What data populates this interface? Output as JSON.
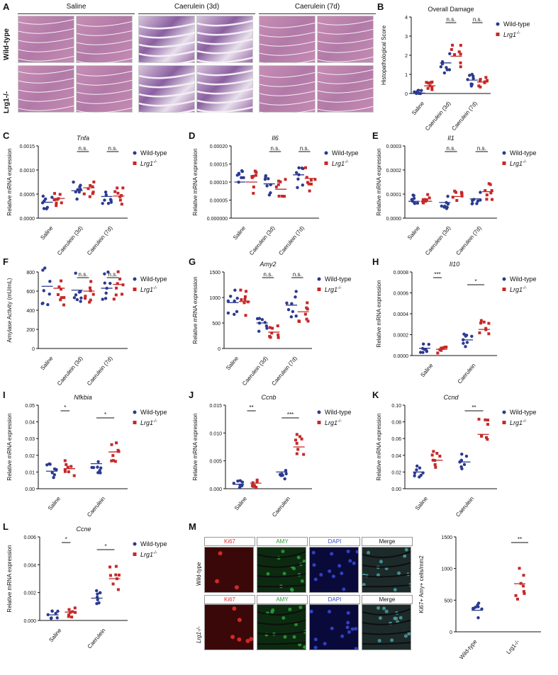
{
  "panel_letters": [
    "A",
    "B",
    "C",
    "D",
    "E",
    "F",
    "G",
    "H",
    "I",
    "J",
    "K",
    "L",
    "M"
  ],
  "panelA": {
    "col_headers": [
      "Saline",
      "Caerulein (3d)",
      "Caerulein (7d)"
    ],
    "row_headers": [
      "Wild-type",
      "Lrg1-/-"
    ]
  },
  "legend": {
    "wt": "Wild-type",
    "ko": "Lrg1",
    "ko_sup": "-/-"
  },
  "colors": {
    "wt": "#2b3a8f",
    "ko": "#c62828",
    "he_pink": "#c78fb4",
    "he_purple": "#7b3f8c"
  },
  "panelM": {
    "channels": [
      "Ki67",
      "AMY",
      "DAPI",
      "Merge"
    ],
    "rows": [
      "Wild-type",
      "Lrg1-/-"
    ]
  },
  "chart_data": [
    {
      "id": "B",
      "type": "scatter",
      "title": "Overall Damage",
      "ylabel": "Histopathological Score",
      "categories": [
        "Saline",
        "Caerulein (3d)",
        "Caerulein (7d)"
      ],
      "ylim": [
        0,
        4
      ],
      "yticks": [
        0,
        1,
        2,
        3,
        4
      ],
      "series": [
        {
          "name": "Wild-type",
          "means": [
            0.02,
            1.6,
            0.7
          ]
        },
        {
          "name": "Lrg1-/-",
          "means": [
            0.4,
            1.95,
            0.6
          ]
        }
      ],
      "annotations": [
        "n.s.",
        "n.s."
      ]
    },
    {
      "id": "C",
      "type": "scatter",
      "title": "Tnfa",
      "ylabel": "Relative mRNA expression",
      "categories": [
        "Saline",
        "Caerulein (3d)",
        "Caerulein (7d)"
      ],
      "ylim": [
        0,
        0.0015
      ],
      "yticks": [
        "0.0000",
        "0.0005",
        "0.0010",
        "0.0015"
      ],
      "series": [
        {
          "name": "Wild-type",
          "means": [
            0.00033,
            0.00057,
            0.00045
          ]
        },
        {
          "name": "Lrg1-/-",
          "means": [
            0.00041,
            0.00063,
            0.00046
          ]
        }
      ],
      "annotations": [
        "n.s.",
        "n.s."
      ]
    },
    {
      "id": "D",
      "type": "scatter",
      "title": "Il6",
      "ylabel": "Relative mRNA expression",
      "categories": [
        "Saline",
        "Caerulein (3d)",
        "Caerulein (7d)"
      ],
      "ylim": [
        0,
        0.0002
      ],
      "yticks": [
        "0.000000",
        "0.00005",
        "0.00010",
        "0.00015",
        "0.00020"
      ],
      "series": [
        {
          "name": "Wild-type",
          "means": [
            0.0001,
            9.5e-05,
            0.00012
          ]
        },
        {
          "name": "Lrg1-/-",
          "means": [
            0.0001,
            8e-05,
            0.00011
          ]
        }
      ],
      "annotations": [
        "n.s.",
        "n.s."
      ]
    },
    {
      "id": "E",
      "type": "scatter",
      "title": "Il1",
      "ylabel": "Relative mRNA expression",
      "categories": [
        "Saline",
        "Caerulein (3d)",
        "Caerulein (7d)"
      ],
      "ylim": [
        0,
        0.0003
      ],
      "yticks": [
        "0.0000",
        "0.0001",
        "0.0002",
        "0.0003"
      ],
      "series": [
        {
          "name": "Wild-type",
          "means": [
            7e-05,
            6.5e-05,
            8e-05
          ]
        },
        {
          "name": "Lrg1-/-",
          "means": [
            7e-05,
            9e-05,
            0.00011
          ]
        }
      ],
      "annotations": [
        "n.s.",
        "n.s."
      ]
    },
    {
      "id": "F",
      "type": "scatter",
      "ylabel": "Amylase Activity (mU/mL)",
      "categories": [
        "Saline",
        "Caerulein (3d)",
        "Caerulein (7d)"
      ],
      "ylim": [
        0,
        800
      ],
      "yticks": [
        0,
        200,
        400,
        600,
        800
      ],
      "series": [
        {
          "name": "Wild-type",
          "means": [
            650,
            610,
            630
          ]
        },
        {
          "name": "Lrg1-/-",
          "means": [
            630,
            600,
            670
          ]
        }
      ],
      "annotations": [
        "n.s.",
        "n.s."
      ]
    },
    {
      "id": "G",
      "type": "scatter",
      "title": "Amy2",
      "ylabel": "Relative mRNA expression",
      "categories": [
        "Saline",
        "Caerulein (3d)",
        "Caerulein (7d)"
      ],
      "ylim": [
        0,
        1500
      ],
      "yticks": [
        0,
        500,
        1000,
        1500
      ],
      "series": [
        {
          "name": "Wild-type",
          "means": [
            900,
            500,
            850
          ]
        },
        {
          "name": "Lrg1-/-",
          "means": [
            920,
            320,
            720
          ]
        }
      ],
      "annotations": [
        "n.s.",
        "n.s."
      ]
    },
    {
      "id": "H",
      "type": "scatter",
      "title": "Il10",
      "ylabel": "Relative mRNA expression",
      "categories": [
        "Saline",
        "Caerulein"
      ],
      "ylim": [
        0,
        0.0008
      ],
      "yticks": [
        "0.0000",
        "0.0002",
        "0.0004",
        "0.0006",
        "0.0008"
      ],
      "series": [
        {
          "name": "Wild-type",
          "means": [
            7e-05,
            0.00015
          ]
        },
        {
          "name": "Lrg1-/-",
          "means": [
            6e-05,
            0.00025
          ]
        }
      ],
      "annotations": [
        "***",
        "*"
      ]
    },
    {
      "id": "I",
      "type": "scatter",
      "title": "Nfkbia",
      "ylabel": "Relative mRNA expression",
      "categories": [
        "Saline",
        "Caerulein"
      ],
      "ylim": [
        0,
        0.05
      ],
      "yticks": [
        "0.00",
        "0.01",
        "0.02",
        "0.03",
        "0.04",
        "0.05"
      ],
      "series": [
        {
          "name": "Wild-type",
          "means": [
            0.0105,
            0.015
          ]
        },
        {
          "name": "Lrg1-/-",
          "means": [
            0.012,
            0.022
          ]
        }
      ],
      "annotations": [
        "*",
        "*"
      ]
    },
    {
      "id": "J",
      "type": "scatter",
      "title": "Ccnb",
      "ylabel": "Relative mRNA expression",
      "categories": [
        "Saline",
        "Caerulein"
      ],
      "ylim": [
        0,
        0.015
      ],
      "yticks": [
        "0.000",
        "0.005",
        "0.010",
        "0.015"
      ],
      "series": [
        {
          "name": "Wild-type",
          "means": [
            0.0008,
            0.003
          ]
        },
        {
          "name": "Lrg1-/-",
          "means": [
            0.001,
            0.0075
          ]
        }
      ],
      "annotations": [
        "**",
        "***"
      ]
    },
    {
      "id": "K",
      "type": "scatter",
      "title": "Ccnd",
      "ylabel": "Relative mRNA expression",
      "categories": [
        "Saline",
        "Caerulein"
      ],
      "ylim": [
        0,
        0.1
      ],
      "yticks": [
        "0.00",
        "0.02",
        "0.04",
        "0.06",
        "0.08",
        "0.10"
      ],
      "series": [
        {
          "name": "Wild-type",
          "means": [
            0.02,
            0.032
          ]
        },
        {
          "name": "Lrg1-/-",
          "means": [
            0.034,
            0.065
          ]
        }
      ],
      "annotations": [
        "**"
      ]
    },
    {
      "id": "L",
      "type": "scatter",
      "title": "Ccne",
      "ylabel": "Relative mRNA expression",
      "categories": [
        "Saline",
        "Caerulein"
      ],
      "ylim": [
        0,
        0.006
      ],
      "yticks": [
        "0.000",
        "0.002",
        "0.004",
        "0.006"
      ],
      "series": [
        {
          "name": "Wild-type",
          "means": [
            0.0004,
            0.0016
          ]
        },
        {
          "name": "Lrg1-/-",
          "means": [
            0.0006,
            0.003
          ]
        }
      ],
      "annotations": [
        "*",
        "*"
      ]
    },
    {
      "id": "M",
      "type": "scatter",
      "ylabel": "Ki67+ Amy+ cells/mm2",
      "categories": [
        "Wild-type",
        "Lrg1-/-"
      ],
      "ylim": [
        0,
        1500
      ],
      "yticks": [
        0,
        500,
        1000,
        1500
      ],
      "series": [
        {
          "name": "",
          "means": [
            340,
            760
          ]
        }
      ],
      "annotations": [
        "**"
      ]
    }
  ]
}
